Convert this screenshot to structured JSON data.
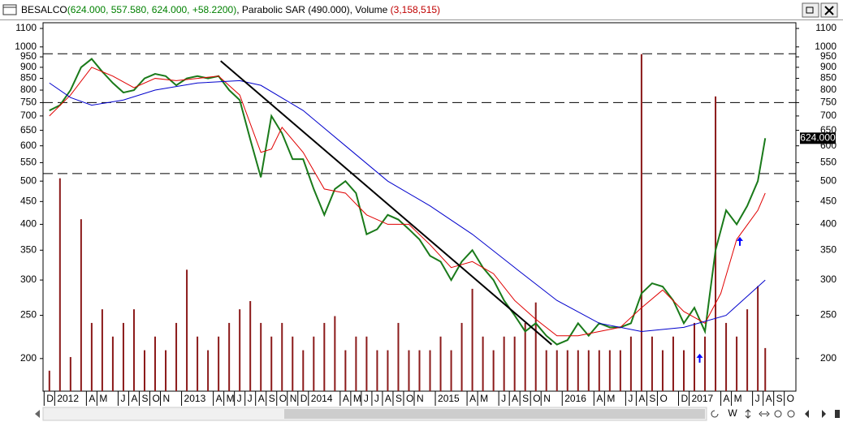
{
  "window": {
    "title_parts": [
      "BESALCO",
      "(624.000, 557.580, 624.000, +58.2200)",
      ", Parabolic SAR ",
      "(490.000)",
      ", Volume ",
      "(3,158,515)"
    ],
    "toolbar_label": "W"
  },
  "chart_data": {
    "type": "line",
    "scale": "log",
    "xlim": [
      -0.6,
      70.6
    ],
    "ylim": [
      169,
      1133
    ],
    "y2lim": [
      0,
      27000000
    ],
    "yticks": [
      200,
      250,
      300,
      350,
      400,
      450,
      500,
      550,
      600,
      650,
      700,
      750,
      800,
      850,
      900,
      950,
      1000,
      1100
    ],
    "xticks": [
      {
        "value": 0,
        "label": "D"
      },
      {
        "value": 1,
        "label": "2012"
      },
      {
        "value": 4,
        "label": "A"
      },
      {
        "value": 5,
        "label": "M"
      },
      {
        "value": 7,
        "label": "J"
      },
      {
        "value": 8,
        "label": "A"
      },
      {
        "value": 9,
        "label": "S"
      },
      {
        "value": 10,
        "label": "O"
      },
      {
        "value": 11,
        "label": "N"
      },
      {
        "value": 13,
        "label": "2013"
      },
      {
        "value": 16,
        "label": "A"
      },
      {
        "value": 17,
        "label": "M"
      },
      {
        "value": 18,
        "label": "J"
      },
      {
        "value": 19,
        "label": "J"
      },
      {
        "value": 20,
        "label": "A"
      },
      {
        "value": 21,
        "label": "S"
      },
      {
        "value": 22,
        "label": "O"
      },
      {
        "value": 23,
        "label": "N"
      },
      {
        "value": 24,
        "label": "D"
      },
      {
        "value": 25,
        "label": "2014"
      },
      {
        "value": 28,
        "label": "A"
      },
      {
        "value": 29,
        "label": "M"
      },
      {
        "value": 30,
        "label": "J"
      },
      {
        "value": 31,
        "label": "J"
      },
      {
        "value": 32,
        "label": "A"
      },
      {
        "value": 33,
        "label": "S"
      },
      {
        "value": 34,
        "label": "O"
      },
      {
        "value": 35,
        "label": "N"
      },
      {
        "value": 37,
        "label": "2015"
      },
      {
        "value": 40,
        "label": "A"
      },
      {
        "value": 41,
        "label": "M"
      },
      {
        "value": 43,
        "label": "J"
      },
      {
        "value": 44,
        "label": "A"
      },
      {
        "value": 45,
        "label": "S"
      },
      {
        "value": 46,
        "label": "O"
      },
      {
        "value": 47,
        "label": "N"
      },
      {
        "value": 49,
        "label": "2016"
      },
      {
        "value": 52,
        "label": "A"
      },
      {
        "value": 53,
        "label": "M"
      },
      {
        "value": 55,
        "label": "J"
      },
      {
        "value": 56,
        "label": "A"
      },
      {
        "value": 57,
        "label": "S"
      },
      {
        "value": 58,
        "label": "O"
      },
      {
        "value": 60,
        "label": "D"
      },
      {
        "value": 61,
        "label": "2017"
      },
      {
        "value": 64,
        "label": "A"
      },
      {
        "value": 65,
        "label": "M"
      },
      {
        "value": 67,
        "label": "J"
      },
      {
        "value": 68,
        "label": "A"
      },
      {
        "value": 69,
        "label": "S"
      },
      {
        "value": 70,
        "label": "O"
      }
    ],
    "last_price_label": "624.000",
    "hlines": [
      965,
      750,
      520
    ],
    "trendline": {
      "x": [
        16.2,
        47.5
      ],
      "y": [
        930,
        215
      ]
    },
    "arrows": {
      "x": [
        61.5,
        65.3
      ],
      "y": [
        205,
        375
      ],
      "color": "#0000ff"
    },
    "series": [
      {
        "color": "#1a7a1a",
        "x": [
          0,
          1,
          2,
          3,
          4,
          5,
          6,
          7,
          8,
          9,
          10,
          11,
          12,
          13,
          14,
          15,
          16,
          17,
          18,
          19,
          20,
          21,
          22,
          23,
          24,
          25,
          26,
          27,
          28,
          29,
          30,
          31,
          32,
          33,
          34,
          35,
          36,
          37,
          38,
          39,
          40,
          41,
          42,
          43,
          44,
          45,
          46,
          47,
          48,
          49,
          50,
          51,
          52,
          53,
          54,
          55,
          56,
          57,
          58,
          59,
          60,
          61,
          62,
          63,
          64,
          65,
          66,
          67,
          67.7
        ],
        "values": [
          720,
          740,
          800,
          900,
          940,
          880,
          830,
          790,
          800,
          850,
          870,
          860,
          820,
          850,
          860,
          850,
          860,
          800,
          760,
          620,
          510,
          700,
          640,
          560,
          560,
          480,
          420,
          480,
          500,
          470,
          380,
          390,
          420,
          410,
          390,
          370,
          340,
          330,
          300,
          330,
          350,
          320,
          300,
          270,
          250,
          230,
          240,
          225,
          215,
          220,
          240,
          225,
          240,
          235,
          235,
          240,
          280,
          295,
          290,
          270,
          240,
          260,
          230,
          350,
          430,
          400,
          440,
          500,
          624
        ],
        "volume": [
          1500000,
          15600000,
          2500000,
          12600000,
          5000000,
          6000000,
          4000000,
          5000000,
          6000000,
          3000000,
          4000000,
          3000000,
          5000000,
          8900000,
          4000000,
          3000000,
          4000000,
          5000000,
          6000000,
          6600000,
          5000000,
          4000000,
          5000000,
          4000000,
          3000000,
          4000000,
          5000000,
          5500000,
          3000000,
          4000000,
          4000000,
          3000000,
          3000000,
          5000000,
          3000000,
          3000000,
          3000000,
          4000000,
          3000000,
          5000000,
          7500000,
          4000000,
          3000000,
          4000000,
          4000000,
          5000000,
          6500000,
          3000000,
          3000000,
          3000000,
          3000000,
          3000000,
          3000000,
          3000000,
          3000000,
          4000000,
          24700000,
          4000000,
          3000000,
          4000000,
          3000000,
          5000000,
          4000000,
          21600000,
          5000000,
          4000000,
          6000000,
          7700000,
          3158515
        ],
        "volume_color": "#8b1a1a"
      },
      {
        "color": "#e00000",
        "x": [
          0,
          2,
          4,
          6,
          8,
          10,
          12,
          14,
          16,
          18,
          20,
          21,
          22,
          24,
          26,
          28,
          30,
          32,
          34,
          36,
          38,
          40,
          42,
          44,
          46,
          48,
          50,
          52,
          54,
          56,
          58,
          60,
          62,
          63.5,
          65,
          67,
          67.7
        ],
        "values": [
          700,
          780,
          900,
          860,
          810,
          850,
          840,
          850,
          860,
          780,
          580,
          590,
          660,
          580,
          480,
          470,
          420,
          400,
          400,
          360,
          320,
          330,
          310,
          270,
          245,
          225,
          225,
          230,
          235,
          260,
          285,
          255,
          240,
          280,
          370,
          430,
          470
        ]
      },
      {
        "color": "#0000cc",
        "x": [
          0,
          2,
          4,
          7,
          10,
          14,
          18,
          20,
          24,
          28,
          32,
          36,
          40,
          44,
          48,
          52,
          56,
          60,
          64,
          67.7
        ],
        "values": [
          830,
          770,
          740,
          760,
          800,
          830,
          840,
          820,
          720,
          600,
          500,
          440,
          380,
          320,
          270,
          240,
          230,
          235,
          250,
          300
        ]
      }
    ]
  }
}
